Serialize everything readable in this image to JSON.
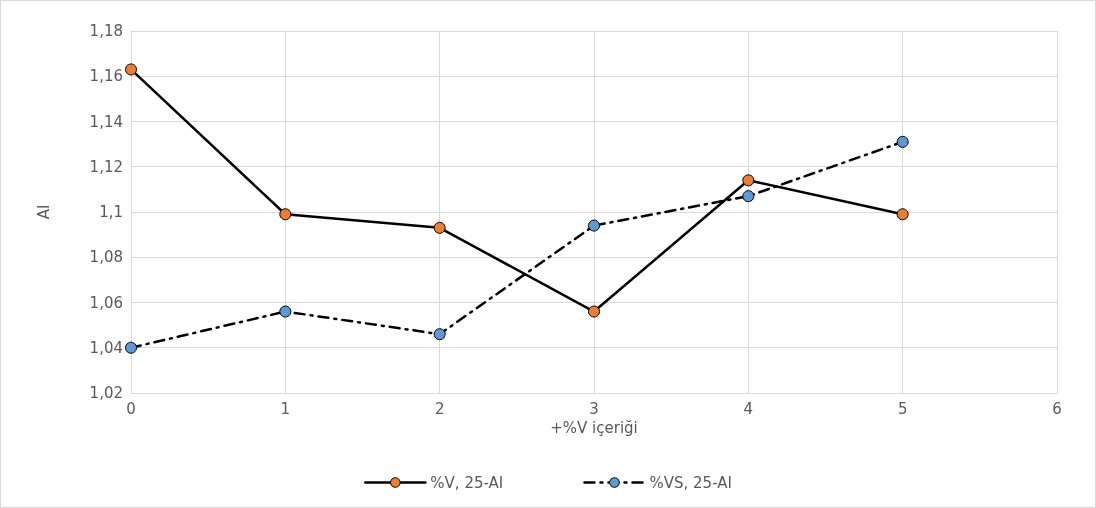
{
  "chart_data": {
    "type": "line",
    "xlabel": "+%V içeriği",
    "ylabel": "AI",
    "x": [
      0,
      1,
      2,
      3,
      4,
      5
    ],
    "series": [
      {
        "name": "%V, 25-AI",
        "color": "#ed7d31",
        "values": [
          1.163,
          1.099,
          1.093,
          1.056,
          1.114,
          1.099
        ],
        "line_style": "solid"
      },
      {
        "name": "%VS, 25-AI",
        "color": "#5b9bd5",
        "values": [
          1.04,
          1.056,
          1.046,
          1.094,
          1.107,
          1.131
        ],
        "line_style": "dashed"
      }
    ],
    "xlim": [
      0,
      6
    ],
    "xticks": [
      0,
      1,
      2,
      3,
      4,
      5,
      6
    ],
    "ylim": [
      1.02,
      1.18
    ],
    "yticks": [
      {
        "value": 1.02,
        "label": "1,02"
      },
      {
        "value": 1.04,
        "label": "1,04"
      },
      {
        "value": 1.06,
        "label": "1,06"
      },
      {
        "value": 1.08,
        "label": "1,08"
      },
      {
        "value": 1.1,
        "label": "1,1"
      },
      {
        "value": 1.12,
        "label": "1,12"
      },
      {
        "value": 1.14,
        "label": "1,14"
      },
      {
        "value": 1.16,
        "label": "1,16"
      },
      {
        "value": 1.18,
        "label": "1,18"
      }
    ],
    "grid": true,
    "legend": "bottom",
    "marker": "circle"
  }
}
